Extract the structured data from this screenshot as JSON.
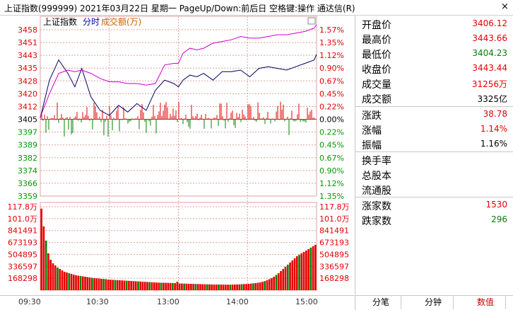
{
  "window": {
    "title": "上证指数(999999)  2021年03月22日  星期一  PageUp/Down:前后日  空格键:操作  通达信(R)",
    "close_symbol": "×"
  },
  "colors": {
    "up": "#e60000",
    "down": "#008000",
    "index_line": "#000066",
    "avg_line": "#cc00cc",
    "grid": "#e0a0a0",
    "axis_text_red": "#e60000",
    "axis_text_green": "#009900"
  },
  "chart_legend": {
    "name": "上证指数",
    "mode": "分时",
    "volume_label": "成交额(万)"
  },
  "chart_data": {
    "type": "line",
    "price_axis": {
      "ticks": [
        "3458",
        "3451",
        "3443",
        "3435",
        "3428",
        "3420",
        "3412",
        "3405",
        "3397",
        "3389",
        "3382",
        "3374",
        "3366",
        "3359"
      ],
      "pct_ticks": [
        "1.57%",
        "1.35%",
        "1.12%",
        "0.90%",
        "0.67%",
        "0.45%",
        "0.22%",
        "0.00%",
        "0.22%",
        "0.45%",
        "0.67%",
        "0.90%",
        "1.12%",
        "1.35%"
      ],
      "ylim": [
        3359,
        3458
      ],
      "prev_close": 3405
    },
    "volume_axis": {
      "ticks": [
        "117.8万",
        "101.0万",
        "841491",
        "673193",
        "504895",
        "336597",
        "168298"
      ],
      "ylim": [
        0,
        1178000
      ]
    },
    "x_ticks": [
      "09:30",
      "10:30",
      "13:00",
      "14:00",
      "15:00"
    ],
    "series": [
      {
        "name": "上证指数",
        "x": [
          0,
          8,
          16,
          24,
          30,
          36,
          44,
          52,
          60,
          68,
          76,
          84,
          92,
          100,
          108,
          116,
          120,
          124,
          130,
          136,
          142,
          150,
          158,
          166,
          174,
          182,
          190,
          198,
          206,
          214,
          222,
          230,
          238,
          240
        ],
        "values": [
          3405.5,
          3428,
          3440,
          3432,
          3424,
          3435,
          3418,
          3410,
          3407,
          3413,
          3409,
          3414,
          3410,
          3422,
          3428,
          3426,
          3424,
          3428,
          3431,
          3430,
          3432,
          3428,
          3433,
          3433,
          3434,
          3430,
          3435,
          3436,
          3435,
          3434,
          3436,
          3438,
          3440,
          3443.4
        ]
      },
      {
        "x": [
          0,
          8,
          16,
          24,
          30,
          36,
          44,
          52,
          60,
          68,
          76,
          84,
          92,
          100,
          108,
          116,
          120,
          124,
          130,
          136,
          142,
          150,
          158,
          166,
          174,
          182,
          190,
          198,
          206,
          214,
          222,
          230,
          238,
          240
        ],
        "values": [
          3406,
          3420,
          3432,
          3434,
          3433,
          3434,
          3432,
          3429,
          3427,
          3427,
          3426,
          3426,
          3425,
          3426,
          3437,
          3438,
          3438,
          3444,
          3447,
          3446,
          3447,
          3450,
          3451,
          3452,
          3454,
          3453,
          3453,
          3454,
          3455,
          3455,
          3456,
          3457,
          3459,
          3461
        ]
      }
    ],
    "volume": {
      "x_step": 2,
      "values": [
        1150000,
        900000,
        700000,
        520000,
        430000,
        380000,
        350000,
        320000,
        300000,
        280000,
        260000,
        250000,
        240000,
        230000,
        220000,
        210000,
        205000,
        200000,
        195000,
        190000,
        185000,
        180000,
        175000,
        170000,
        168000,
        165000,
        160000,
        158000,
        155000,
        150000,
        148000,
        146000,
        144000,
        142000,
        140000,
        138000,
        136000,
        134000,
        132000,
        130000,
        128000,
        126000,
        124000,
        122000,
        120000,
        118000,
        116000,
        114000,
        112000,
        110000,
        108000,
        107000,
        106000,
        105000,
        104000,
        103000,
        102000,
        101000,
        100000,
        120000,
        95000,
        94000,
        93000,
        92000,
        91000,
        90000,
        89000,
        88000,
        87000,
        86000,
        85000,
        84000,
        83000,
        82000,
        81000,
        80000,
        80000,
        80000,
        79000,
        79000,
        78000,
        78000,
        78000,
        79000,
        80000,
        81000,
        82000,
        84000,
        86000,
        88000,
        90000,
        93000,
        96000,
        100000,
        105000,
        110000,
        118000,
        128000,
        140000,
        155000,
        170000,
        190000,
        215000,
        240000,
        270000,
        300000,
        330000,
        360000,
        390000,
        420000,
        450000,
        480000,
        500000,
        520000,
        540000,
        560000,
        580000,
        600000,
        620000,
        640000
      ]
    }
  },
  "stats": [
    {
      "label": "开盘价",
      "value": "3406.12",
      "color": "#e60000"
    },
    {
      "label": "最高价",
      "value": "3443.66",
      "color": "#e60000"
    },
    {
      "label": "最低价",
      "value": "3404.23",
      "color": "#008000"
    },
    {
      "label": "收盘价",
      "value": "3443.44",
      "color": "#e60000"
    },
    {
      "label": "成交量",
      "value": "31256万",
      "color": "#e60000"
    },
    {
      "label": "成交额",
      "value": "3325亿",
      "color": "#000000"
    }
  ],
  "changes": [
    {
      "label": "涨跌",
      "value": "38.78",
      "color": "#e60000"
    },
    {
      "label": "涨幅",
      "value": "1.14%",
      "color": "#e60000"
    },
    {
      "label": "振幅",
      "value": "1.16%",
      "color": "#000000"
    }
  ],
  "shares": [
    {
      "label": "换手率"
    },
    {
      "label": "总股本"
    },
    {
      "label": "流通股"
    }
  ],
  "breadth": [
    {
      "label": "涨家数",
      "value": "1530",
      "color": "#e60000"
    },
    {
      "label": "跌家数",
      "value": "296",
      "color": "#008000"
    }
  ],
  "tabs": [
    "分笔",
    "分钟",
    "数值"
  ]
}
